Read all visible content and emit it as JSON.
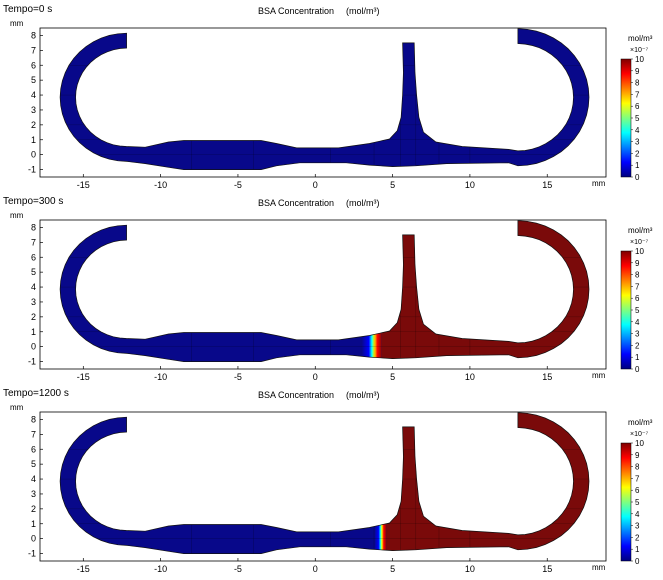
{
  "panels": [
    {
      "label": "Tempo=0 s",
      "title": "BSA Concentration",
      "title_unit": "(mol/m³)",
      "y_unit": "mm",
      "x_unit": "mm",
      "cb_unit": "mol/m³",
      "cb_scale": "×10⁻⁷",
      "front_x": null
    },
    {
      "label": "Tempo=300 s",
      "title": "BSA Concentration",
      "title_unit": "(mol/m³)",
      "y_unit": "mm",
      "x_unit": "mm",
      "cb_unit": "mol/m³",
      "cb_scale": "×10⁻⁷",
      "front_x": 4.3
    },
    {
      "label": "Tempo=1200 s",
      "title": "BSA Concentration",
      "title_unit": "(mol/m³)",
      "y_unit": "mm",
      "x_unit": "mm",
      "cb_unit": "mol/m³",
      "cb_scale": "×10⁻⁷",
      "front_x": 4.6
    }
  ],
  "chart_data": {
    "type": "heatmap",
    "title": "BSA Concentration",
    "x_ticks": [
      "-15",
      "-10",
      "-5",
      "0",
      "5",
      "10",
      "15"
    ],
    "x_tick_values": [
      -15,
      -10,
      -5,
      0,
      5,
      10,
      15
    ],
    "y_ticks": [
      "-1",
      "0",
      "1",
      "2",
      "3",
      "4",
      "5",
      "6",
      "7",
      "8"
    ],
    "y_tick_values": [
      -1,
      0,
      1,
      2,
      3,
      4,
      5,
      6,
      7,
      8
    ],
    "xlim": [
      -17.8,
      18.8
    ],
    "ylim": [
      -1.5,
      8.5
    ],
    "colorbar_ticks": [
      "0",
      "1",
      "2",
      "3",
      "4",
      "5",
      "6",
      "7",
      "8",
      "9",
      "10"
    ],
    "colorbar_range": [
      0,
      10
    ],
    "colormap": [
      "#00007f",
      "#0000ff",
      "#007fff",
      "#00ffff",
      "#7fff7f",
      "#ffff00",
      "#ff7f00",
      "#ff0000",
      "#7f0000"
    ],
    "low_color": "#08088a",
    "high_color": "#7a0a0a",
    "times_s": [
      0,
      300,
      1200
    ]
  }
}
